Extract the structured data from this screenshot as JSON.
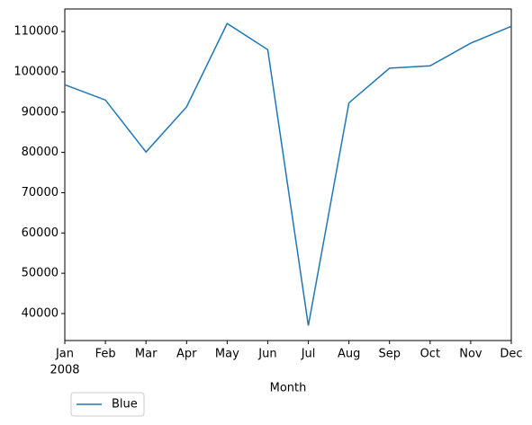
{
  "chart_data": {
    "type": "line",
    "categories": [
      "Jan",
      "Feb",
      "Mar",
      "Apr",
      "May",
      "Jun",
      "Jul",
      "Aug",
      "Sep",
      "Oct",
      "Nov",
      "Dec"
    ],
    "x_first_sublabel": "2008",
    "x_label": "Month",
    "series": [
      {
        "name": "Blue",
        "color": "#1f77b4",
        "values": [
          96800,
          93000,
          80100,
          91300,
          112000,
          105500,
          37000,
          92300,
          100900,
          101500,
          107100,
          111300
        ]
      }
    ],
    "ylim": [
      33300,
      115600
    ],
    "yticks": [
      40000,
      50000,
      60000,
      70000,
      80000,
      90000,
      100000,
      110000
    ],
    "grid": false,
    "legend": "lower left outside"
  }
}
